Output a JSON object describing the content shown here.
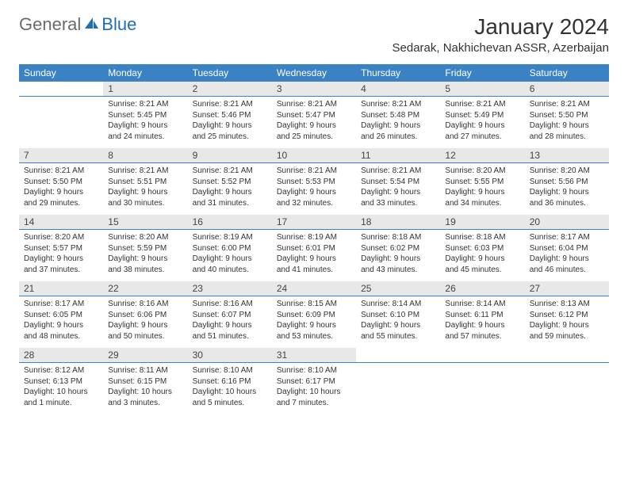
{
  "brand": {
    "general": "General",
    "blue": "Blue"
  },
  "title": "January 2024",
  "location": "Sedarak, Nakhichevan ASSR, Azerbaijan",
  "colors": {
    "header_bg": "#3b82c4",
    "header_text": "#ffffff",
    "daynum_bg": "#e8e8e8",
    "border": "#3b82c4",
    "text": "#333333",
    "logo_gray": "#6b6b6b",
    "logo_blue": "#1f6fb2"
  },
  "day_headers": [
    "Sunday",
    "Monday",
    "Tuesday",
    "Wednesday",
    "Thursday",
    "Friday",
    "Saturday"
  ],
  "weeks": [
    [
      {
        "n": "",
        "sunrise": "",
        "sunset": "",
        "daylight1": "",
        "daylight2": ""
      },
      {
        "n": "1",
        "sunrise": "Sunrise: 8:21 AM",
        "sunset": "Sunset: 5:45 PM",
        "daylight1": "Daylight: 9 hours",
        "daylight2": "and 24 minutes."
      },
      {
        "n": "2",
        "sunrise": "Sunrise: 8:21 AM",
        "sunset": "Sunset: 5:46 PM",
        "daylight1": "Daylight: 9 hours",
        "daylight2": "and 25 minutes."
      },
      {
        "n": "3",
        "sunrise": "Sunrise: 8:21 AM",
        "sunset": "Sunset: 5:47 PM",
        "daylight1": "Daylight: 9 hours",
        "daylight2": "and 25 minutes."
      },
      {
        "n": "4",
        "sunrise": "Sunrise: 8:21 AM",
        "sunset": "Sunset: 5:48 PM",
        "daylight1": "Daylight: 9 hours",
        "daylight2": "and 26 minutes."
      },
      {
        "n": "5",
        "sunrise": "Sunrise: 8:21 AM",
        "sunset": "Sunset: 5:49 PM",
        "daylight1": "Daylight: 9 hours",
        "daylight2": "and 27 minutes."
      },
      {
        "n": "6",
        "sunrise": "Sunrise: 8:21 AM",
        "sunset": "Sunset: 5:50 PM",
        "daylight1": "Daylight: 9 hours",
        "daylight2": "and 28 minutes."
      }
    ],
    [
      {
        "n": "7",
        "sunrise": "Sunrise: 8:21 AM",
        "sunset": "Sunset: 5:50 PM",
        "daylight1": "Daylight: 9 hours",
        "daylight2": "and 29 minutes."
      },
      {
        "n": "8",
        "sunrise": "Sunrise: 8:21 AM",
        "sunset": "Sunset: 5:51 PM",
        "daylight1": "Daylight: 9 hours",
        "daylight2": "and 30 minutes."
      },
      {
        "n": "9",
        "sunrise": "Sunrise: 8:21 AM",
        "sunset": "Sunset: 5:52 PM",
        "daylight1": "Daylight: 9 hours",
        "daylight2": "and 31 minutes."
      },
      {
        "n": "10",
        "sunrise": "Sunrise: 8:21 AM",
        "sunset": "Sunset: 5:53 PM",
        "daylight1": "Daylight: 9 hours",
        "daylight2": "and 32 minutes."
      },
      {
        "n": "11",
        "sunrise": "Sunrise: 8:21 AM",
        "sunset": "Sunset: 5:54 PM",
        "daylight1": "Daylight: 9 hours",
        "daylight2": "and 33 minutes."
      },
      {
        "n": "12",
        "sunrise": "Sunrise: 8:20 AM",
        "sunset": "Sunset: 5:55 PM",
        "daylight1": "Daylight: 9 hours",
        "daylight2": "and 34 minutes."
      },
      {
        "n": "13",
        "sunrise": "Sunrise: 8:20 AM",
        "sunset": "Sunset: 5:56 PM",
        "daylight1": "Daylight: 9 hours",
        "daylight2": "and 36 minutes."
      }
    ],
    [
      {
        "n": "14",
        "sunrise": "Sunrise: 8:20 AM",
        "sunset": "Sunset: 5:57 PM",
        "daylight1": "Daylight: 9 hours",
        "daylight2": "and 37 minutes."
      },
      {
        "n": "15",
        "sunrise": "Sunrise: 8:20 AM",
        "sunset": "Sunset: 5:59 PM",
        "daylight1": "Daylight: 9 hours",
        "daylight2": "and 38 minutes."
      },
      {
        "n": "16",
        "sunrise": "Sunrise: 8:19 AM",
        "sunset": "Sunset: 6:00 PM",
        "daylight1": "Daylight: 9 hours",
        "daylight2": "and 40 minutes."
      },
      {
        "n": "17",
        "sunrise": "Sunrise: 8:19 AM",
        "sunset": "Sunset: 6:01 PM",
        "daylight1": "Daylight: 9 hours",
        "daylight2": "and 41 minutes."
      },
      {
        "n": "18",
        "sunrise": "Sunrise: 8:18 AM",
        "sunset": "Sunset: 6:02 PM",
        "daylight1": "Daylight: 9 hours",
        "daylight2": "and 43 minutes."
      },
      {
        "n": "19",
        "sunrise": "Sunrise: 8:18 AM",
        "sunset": "Sunset: 6:03 PM",
        "daylight1": "Daylight: 9 hours",
        "daylight2": "and 45 minutes."
      },
      {
        "n": "20",
        "sunrise": "Sunrise: 8:17 AM",
        "sunset": "Sunset: 6:04 PM",
        "daylight1": "Daylight: 9 hours",
        "daylight2": "and 46 minutes."
      }
    ],
    [
      {
        "n": "21",
        "sunrise": "Sunrise: 8:17 AM",
        "sunset": "Sunset: 6:05 PM",
        "daylight1": "Daylight: 9 hours",
        "daylight2": "and 48 minutes."
      },
      {
        "n": "22",
        "sunrise": "Sunrise: 8:16 AM",
        "sunset": "Sunset: 6:06 PM",
        "daylight1": "Daylight: 9 hours",
        "daylight2": "and 50 minutes."
      },
      {
        "n": "23",
        "sunrise": "Sunrise: 8:16 AM",
        "sunset": "Sunset: 6:07 PM",
        "daylight1": "Daylight: 9 hours",
        "daylight2": "and 51 minutes."
      },
      {
        "n": "24",
        "sunrise": "Sunrise: 8:15 AM",
        "sunset": "Sunset: 6:09 PM",
        "daylight1": "Daylight: 9 hours",
        "daylight2": "and 53 minutes."
      },
      {
        "n": "25",
        "sunrise": "Sunrise: 8:14 AM",
        "sunset": "Sunset: 6:10 PM",
        "daylight1": "Daylight: 9 hours",
        "daylight2": "and 55 minutes."
      },
      {
        "n": "26",
        "sunrise": "Sunrise: 8:14 AM",
        "sunset": "Sunset: 6:11 PM",
        "daylight1": "Daylight: 9 hours",
        "daylight2": "and 57 minutes."
      },
      {
        "n": "27",
        "sunrise": "Sunrise: 8:13 AM",
        "sunset": "Sunset: 6:12 PM",
        "daylight1": "Daylight: 9 hours",
        "daylight2": "and 59 minutes."
      }
    ],
    [
      {
        "n": "28",
        "sunrise": "Sunrise: 8:12 AM",
        "sunset": "Sunset: 6:13 PM",
        "daylight1": "Daylight: 10 hours",
        "daylight2": "and 1 minute."
      },
      {
        "n": "29",
        "sunrise": "Sunrise: 8:11 AM",
        "sunset": "Sunset: 6:15 PM",
        "daylight1": "Daylight: 10 hours",
        "daylight2": "and 3 minutes."
      },
      {
        "n": "30",
        "sunrise": "Sunrise: 8:10 AM",
        "sunset": "Sunset: 6:16 PM",
        "daylight1": "Daylight: 10 hours",
        "daylight2": "and 5 minutes."
      },
      {
        "n": "31",
        "sunrise": "Sunrise: 8:10 AM",
        "sunset": "Sunset: 6:17 PM",
        "daylight1": "Daylight: 10 hours",
        "daylight2": "and 7 minutes."
      },
      {
        "n": "",
        "sunrise": "",
        "sunset": "",
        "daylight1": "",
        "daylight2": ""
      },
      {
        "n": "",
        "sunrise": "",
        "sunset": "",
        "daylight1": "",
        "daylight2": ""
      },
      {
        "n": "",
        "sunrise": "",
        "sunset": "",
        "daylight1": "",
        "daylight2": ""
      }
    ]
  ]
}
